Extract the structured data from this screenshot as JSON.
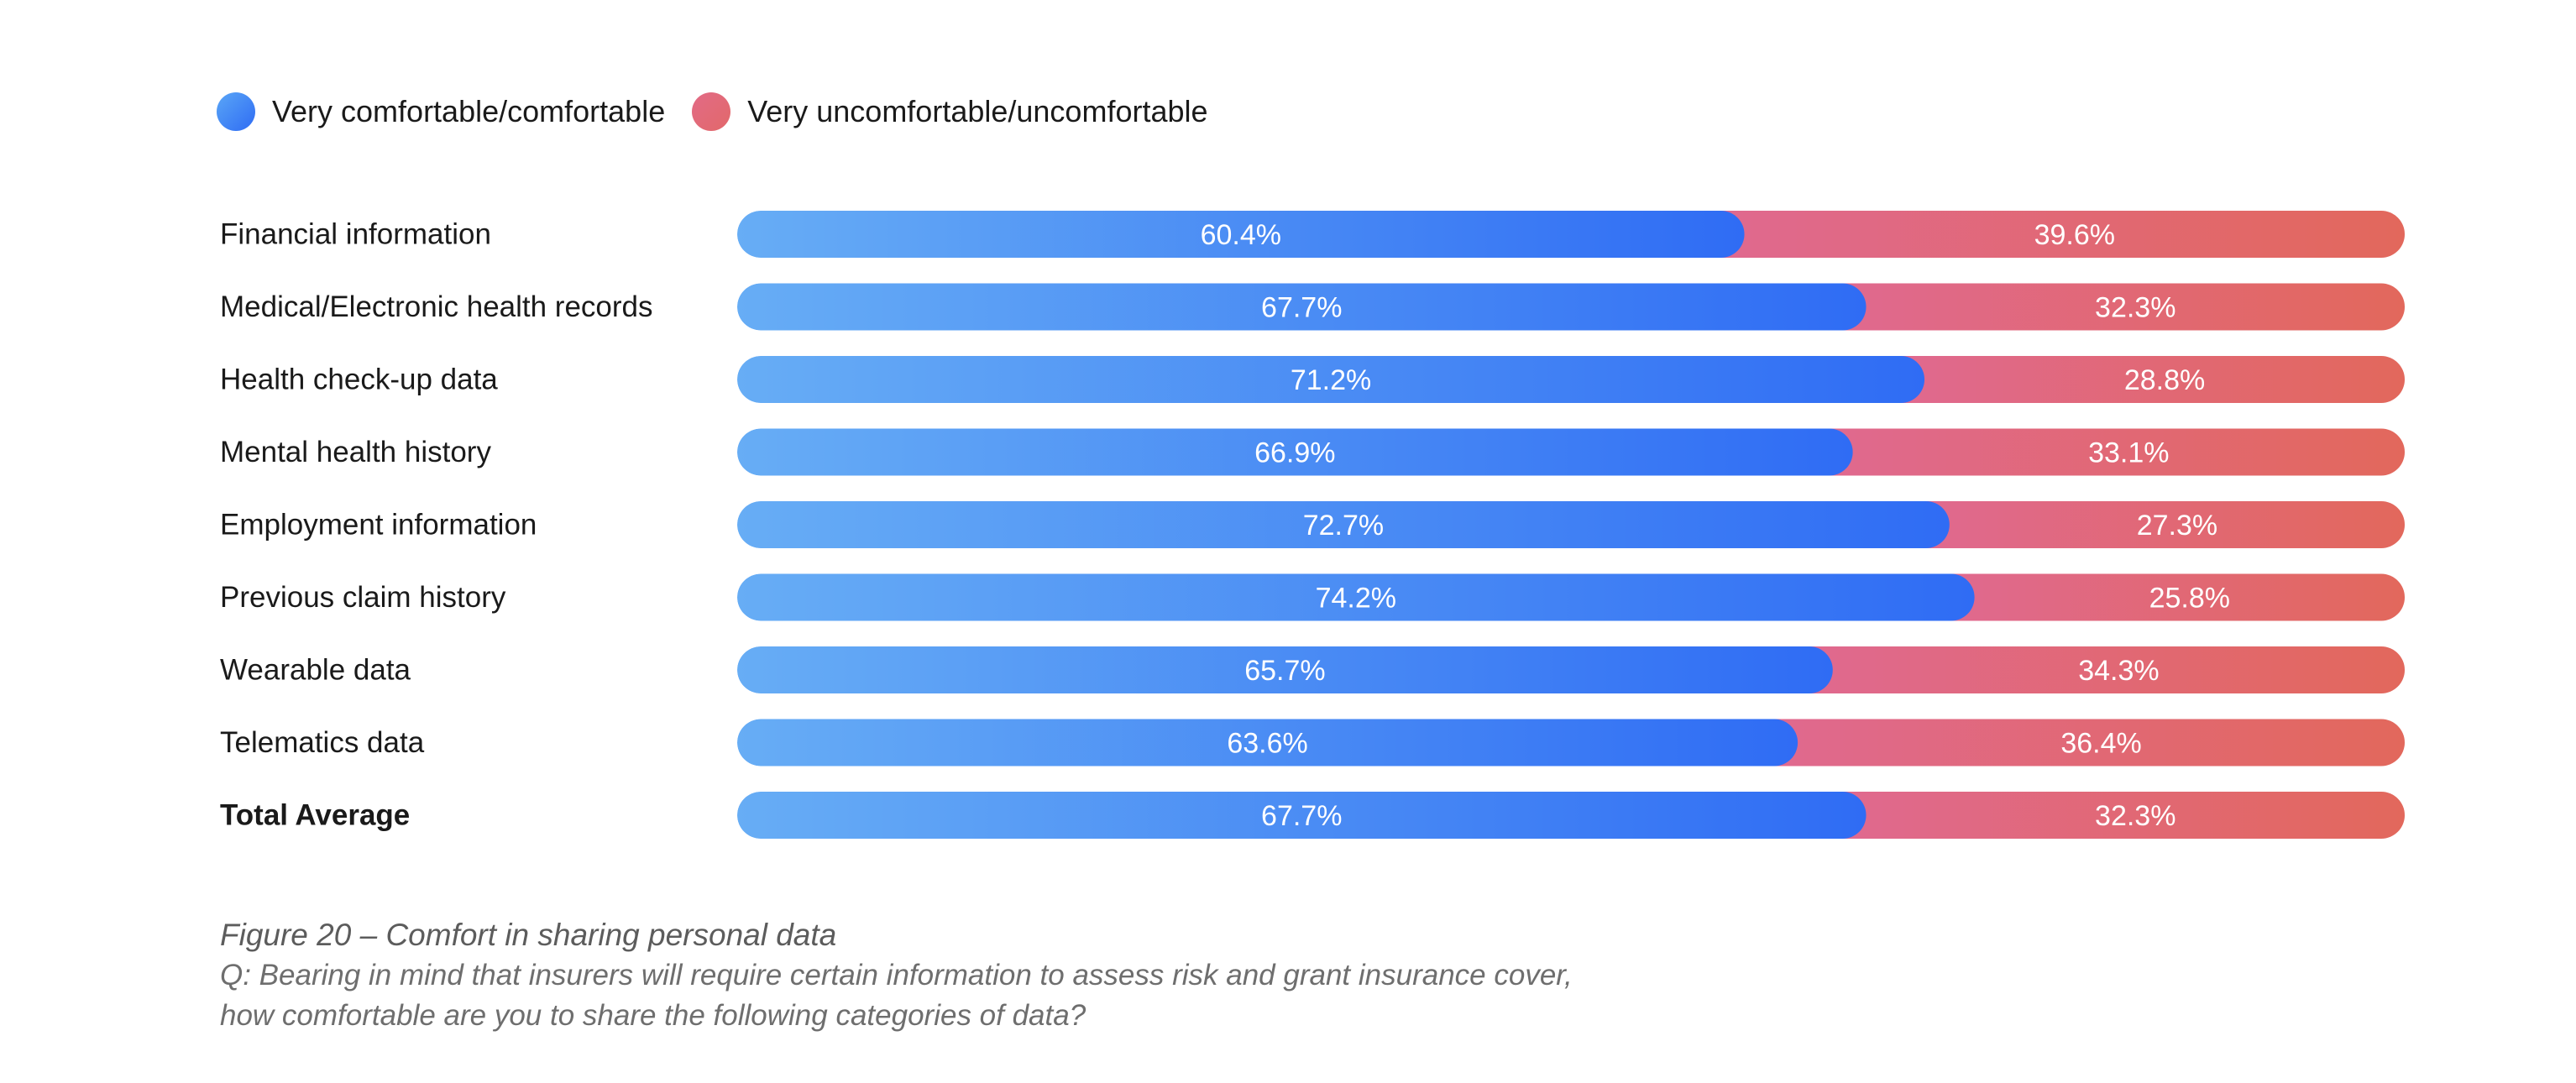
{
  "legend": [
    {
      "label": "Very comfortable/comfortable",
      "color": "#3d7ff5"
    },
    {
      "label": "Very uncomfortable/uncomfortable",
      "color": "#e26b7b"
    }
  ],
  "caption": {
    "title": "Figure 20 – Comfort in sharing personal data",
    "question_line1": "Q: Bearing in mind that insurers will require certain information to assess risk and grant insurance cover,",
    "question_line2": "how comfortable are you to share the following categories of data?"
  },
  "chart_data": {
    "type": "bar",
    "orientation": "horizontal",
    "stacked": true,
    "unit": "%",
    "categories": [
      "Financial information",
      "Medical/Electronic health records",
      "Health check-up data",
      "Mental health history",
      "Employment information",
      "Previous claim history",
      "Wearable data",
      "Telematics data",
      "Total Average"
    ],
    "bold_categories": [
      "Total Average"
    ],
    "series": [
      {
        "name": "Very comfortable/comfortable",
        "values": [
          60.4,
          67.7,
          71.2,
          66.9,
          72.7,
          74.2,
          65.7,
          63.6,
          67.7
        ],
        "labels": [
          "60.4%",
          "67.7%",
          "71.2%",
          "66.9%",
          "72.7%",
          "74.2%",
          "65.7%",
          "63.6%",
          "67.7%"
        ],
        "color_start": "#67adf5",
        "color_end": "#2f6cf4"
      },
      {
        "name": "Very uncomfortable/uncomfortable",
        "values": [
          39.6,
          32.3,
          28.8,
          33.1,
          27.3,
          25.8,
          34.3,
          36.4,
          32.3
        ],
        "labels": [
          "39.6%",
          "32.3%",
          "28.8%",
          "33.1%",
          "27.3%",
          "25.8%",
          "34.3%",
          "36.4%",
          "32.3%"
        ],
        "color_start": "#e0698f",
        "color_end": "#e2685c"
      }
    ],
    "xlim": [
      0,
      100
    ],
    "grid": false,
    "legend_position": "top-left"
  }
}
